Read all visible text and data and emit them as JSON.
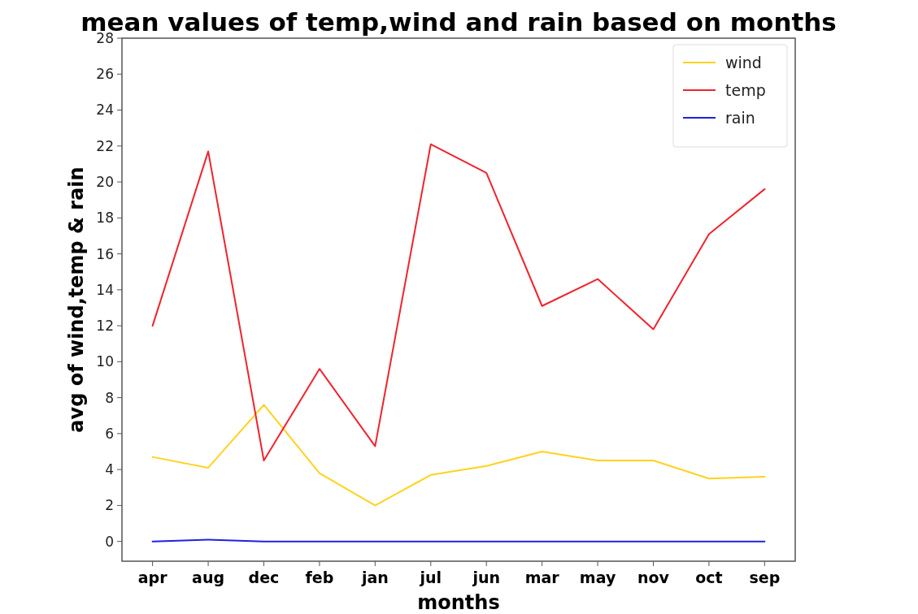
{
  "chart_data": {
    "type": "line",
    "title": "mean values of temp,wind and rain based on months",
    "xlabel": "months",
    "ylabel": "avg of wind,temp & rain",
    "categories": [
      "apr",
      "aug",
      "dec",
      "feb",
      "jan",
      "jul",
      "jun",
      "mar",
      "may",
      "nov",
      "oct",
      "sep"
    ],
    "series": [
      {
        "name": "wind",
        "color": "#ffd21f",
        "values": [
          4.7,
          4.1,
          7.6,
          3.8,
          2.0,
          3.7,
          4.2,
          5.0,
          4.5,
          4.5,
          3.5,
          3.6
        ]
      },
      {
        "name": "temp",
        "color": "#f0232d",
        "values": [
          12.0,
          21.7,
          4.5,
          9.6,
          5.3,
          22.1,
          20.5,
          13.1,
          14.6,
          11.8,
          17.1,
          19.6
        ]
      },
      {
        "name": "rain",
        "color": "#2020e0",
        "values": [
          0.0,
          0.1,
          0.0,
          0.0,
          0.0,
          0.0,
          0.0,
          0.0,
          0.0,
          0.0,
          0.0,
          0.0
        ]
      }
    ],
    "ylim": [
      -1.1,
      28
    ],
    "yticks": [
      0,
      2,
      4,
      6,
      8,
      10,
      12,
      14,
      16,
      18,
      20,
      22,
      24,
      26,
      28
    ],
    "grid": false,
    "legend": "top right",
    "line_style": "solid"
  }
}
